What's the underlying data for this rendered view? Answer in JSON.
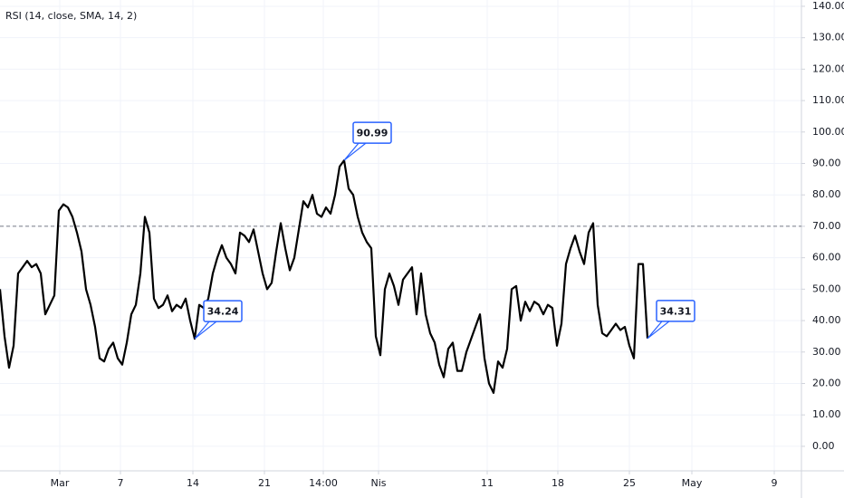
{
  "chart_data": {
    "type": "line",
    "title": "RSI (14, close, SMA, 14, 2)",
    "xlim": [
      0,
      177
    ],
    "ylim": [
      -7.8,
      142
    ],
    "xticks": [
      {
        "value": 13.2,
        "label": "Mar"
      },
      {
        "value": 26.6,
        "label": "7"
      },
      {
        "value": 42.6,
        "label": "14"
      },
      {
        "value": 58.4,
        "label": "21"
      },
      {
        "value": 71.4,
        "label": "14:00"
      },
      {
        "value": 83.6,
        "label": "Nis"
      },
      {
        "value": 107.6,
        "label": "11"
      },
      {
        "value": 123.2,
        "label": "18"
      },
      {
        "value": 139,
        "label": "25"
      },
      {
        "value": 152.8,
        "label": "May"
      },
      {
        "value": 171,
        "label": "9"
      }
    ],
    "yticks": [
      {
        "value": 0,
        "label": "0.00"
      },
      {
        "value": 10,
        "label": "10.00"
      },
      {
        "value": 20,
        "label": "20.00"
      },
      {
        "value": 30,
        "label": "30.00"
      },
      {
        "value": 40,
        "label": "40.00"
      },
      {
        "value": 50,
        "label": "50.00"
      },
      {
        "value": 60,
        "label": "60.00"
      },
      {
        "value": 70,
        "label": "70.00"
      },
      {
        "value": 80,
        "label": "80.00"
      },
      {
        "value": 90,
        "label": "90.00"
      },
      {
        "value": 100,
        "label": "100.00"
      },
      {
        "value": 110,
        "label": "110.00"
      },
      {
        "value": 120,
        "label": "120.00"
      },
      {
        "value": 130,
        "label": "130.00"
      },
      {
        "value": 140,
        "label": "140.00"
      }
    ],
    "grid": true,
    "reference_line": 70,
    "color": "#000000",
    "values": [
      50,
      35,
      25,
      32,
      55,
      57,
      59,
      57,
      58,
      55,
      42,
      45,
      48,
      75,
      77,
      76,
      73,
      68,
      62,
      50,
      45,
      38,
      28,
      27,
      31,
      33,
      28,
      26,
      33,
      42,
      45,
      55,
      73,
      68,
      47,
      44,
      45,
      48,
      43,
      45,
      44,
      47,
      40,
      34.24,
      45,
      44,
      47,
      55,
      60,
      64,
      60,
      58,
      55,
      68,
      67,
      65,
      69,
      62,
      55,
      50,
      52,
      62,
      71,
      63,
      56,
      60,
      69,
      78,
      76,
      80,
      74,
      73,
      76,
      74,
      80,
      89,
      90.99,
      82,
      80,
      73,
      68,
      65,
      63,
      35,
      29,
      50,
      55,
      51,
      45,
      53,
      55,
      57,
      42,
      55,
      42,
      36,
      33,
      26,
      22,
      31,
      33,
      24,
      24,
      30,
      34,
      38,
      42,
      28,
      20,
      17,
      27,
      25,
      31,
      50,
      51,
      40,
      46,
      43,
      46,
      45,
      42,
      45,
      44,
      32,
      39,
      58,
      63,
      67,
      62,
      58,
      68,
      71,
      45,
      36,
      35,
      37,
      39,
      37,
      38,
      32,
      28,
      58,
      58,
      34.31
    ],
    "annotations": [
      {
        "x": 43,
        "text": "34.24"
      },
      {
        "x": 76,
        "text": "90.99"
      },
      {
        "x": 143,
        "text": "34.31"
      }
    ]
  }
}
